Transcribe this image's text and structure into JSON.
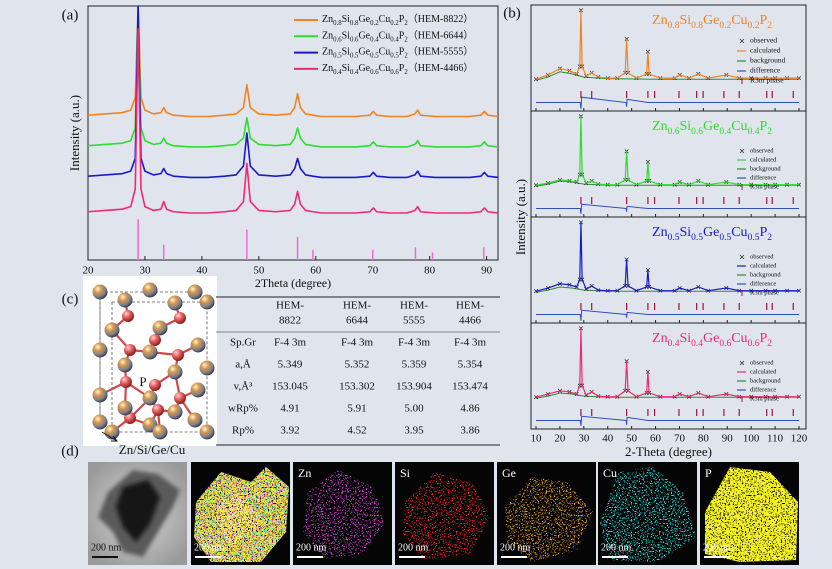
{
  "panel_labels": [
    "(a)",
    "(b)",
    "(c)",
    "(d)"
  ],
  "chart_data": [
    {
      "type": "line",
      "x_label": "2Theta (degree)",
      "y_label": "Intensity (a.u.)",
      "xlim": [
        20,
        92
      ],
      "ylim": [
        0,
        100
      ],
      "xticks": [
        20,
        30,
        40,
        50,
        60,
        70,
        80,
        90
      ],
      "x": [
        20,
        23,
        26,
        27.5,
        28.3,
        28.8,
        29.3,
        30,
        31.5,
        32.8,
        33.3,
        33.8,
        35,
        38,
        41,
        44,
        46,
        47.3,
        47.9,
        48.5,
        50,
        53,
        55.5,
        56.3,
        56.8,
        57.3,
        58.2,
        59.5,
        61,
        64,
        67,
        69.5,
        70.1,
        70.7,
        73,
        76,
        77.4,
        77.9,
        78.4,
        81,
        84,
        87,
        89,
        89.6,
        90.2,
        92
      ],
      "series": [
        {
          "name": "（HEM-8822）",
          "color": "#f5821f",
          "formula": [
            [
              "Zn",
              "0.8"
            ],
            [
              "Si",
              "0.8"
            ],
            [
              "Ge",
              "0.2"
            ],
            [
              "Cu",
              "0.2"
            ],
            [
              "P",
              "2"
            ]
          ],
          "values": [
            57,
            57.5,
            58,
            59,
            64,
            100,
            64,
            59,
            57.5,
            58,
            60,
            58,
            57,
            56.5,
            56.5,
            57,
            57.5,
            60,
            69,
            60,
            57.5,
            57,
            57.5,
            60,
            65.5,
            60,
            57.5,
            57,
            56.5,
            56.5,
            56.5,
            57,
            58.5,
            57,
            56.5,
            56.5,
            57.5,
            59,
            57,
            56.5,
            56.5,
            56.5,
            57,
            58.5,
            57,
            56.5
          ]
        },
        {
          "name": "（HEM-6644）",
          "color": "#2fdc2f",
          "formula": [
            [
              "Zn",
              "0.6"
            ],
            [
              "Si",
              "0.6"
            ],
            [
              "Ge",
              "0.4"
            ],
            [
              "Cu",
              "0.4"
            ],
            [
              "P",
              "2"
            ]
          ],
          "values": [
            45,
            45.5,
            46,
            47,
            52,
            100,
            52,
            47,
            45.5,
            46,
            48,
            46,
            45,
            44.5,
            44.5,
            45,
            45.5,
            48,
            56,
            48,
            45.5,
            45,
            45.5,
            48,
            52,
            48,
            45.5,
            45,
            44.5,
            44.5,
            44.5,
            45,
            46.5,
            45,
            44.5,
            44.5,
            45.5,
            47,
            45,
            44.5,
            44.5,
            44.5,
            45,
            46.5,
            45,
            44.5
          ]
        },
        {
          "name": "（HEM-5555）",
          "color": "#1a1ac8",
          "formula": [
            [
              "Zn",
              "0.5"
            ],
            [
              "Si",
              "0.5"
            ],
            [
              "Ge",
              "0.5"
            ],
            [
              "Cu",
              "0.5"
            ],
            [
              "P",
              "2"
            ]
          ],
          "values": [
            33,
            33.5,
            34,
            35,
            40,
            100,
            40,
            35,
            33.5,
            34,
            36,
            34,
            33,
            32.5,
            32.5,
            33,
            33.5,
            37,
            50,
            37,
            33.5,
            33,
            33.5,
            36,
            40,
            36,
            33.5,
            33,
            32.5,
            32.5,
            32.5,
            33,
            34.5,
            33,
            32.5,
            32.5,
            33.5,
            35,
            33,
            32.5,
            32.5,
            32.5,
            33,
            34.5,
            33,
            32.5
          ]
        },
        {
          "name": "（HEM-4466）",
          "color": "#f0287a",
          "formula": [
            [
              "Zn",
              "0.4"
            ],
            [
              "Si",
              "0.4"
            ],
            [
              "Ge",
              "0.6"
            ],
            [
              "Cu",
              "0.6"
            ],
            [
              "P",
              "2"
            ]
          ],
          "values": [
            19,
            19.5,
            20,
            21,
            28,
            91,
            28,
            21,
            19.5,
            20,
            23,
            20,
            19,
            18.5,
            18.5,
            19,
            19.5,
            23,
            38,
            23,
            19.5,
            19,
            19.5,
            22,
            27,
            22,
            19.5,
            19,
            18.5,
            18.5,
            18.5,
            19,
            20.5,
            19,
            18.5,
            18.5,
            19.5,
            21,
            19,
            18.5,
            18.5,
            18.5,
            19,
            20.5,
            19,
            18.5
          ]
        }
      ],
      "reference": {
        "color": "#f06ad8",
        "x": [
          28.8,
          33.3,
          47.9,
          56.8,
          59.5,
          70,
          77.5,
          80.5,
          89.5
        ],
        "values": [
          16,
          6,
          12,
          9,
          4,
          4,
          5,
          3,
          5
        ]
      }
    },
    {
      "type": "rietveld",
      "x_label": "2-Theta (degree)",
      "y_label": "Intensity (a.u.)",
      "xlim": [
        10,
        120
      ],
      "ylim": [
        0,
        100
      ],
      "xticks": [
        10,
        20,
        30,
        40,
        50,
        60,
        70,
        80,
        90,
        100,
        110,
        120
      ],
      "legend": [
        "observed",
        "calculated",
        "background",
        "difference",
        "R3m phase"
      ],
      "background_color": "#2e8b2e",
      "difference_color": "#3050c0",
      "phase_color": "#a01040",
      "phase_ticks": [
        28.8,
        33.3,
        47.9,
        56.8,
        59.6,
        69.8,
        77.2,
        79.9,
        88.6,
        95,
        106.5,
        108.8,
        117.6
      ],
      "panels": [
        {
          "x": [
            10,
            15,
            20,
            24,
            27,
            28.3,
            28.8,
            29.3,
            31,
            33.3,
            36,
            40,
            44,
            47.3,
            47.9,
            48.5,
            52,
            56.3,
            56.8,
            57.3,
            62,
            68,
            70.1,
            74,
            77.9,
            82,
            89.6,
            95,
            100,
            106,
            110,
            115,
            120
          ],
          "values": [
            30,
            34,
            40,
            38,
            35,
            42,
            95,
            42,
            33,
            36,
            32,
            31,
            31,
            36,
            68,
            36,
            31,
            35,
            56,
            35,
            31,
            31,
            34,
            31,
            35,
            31,
            34,
            31,
            31,
            31,
            31,
            31,
            31
          ],
          "background": {
            "x": [
              10,
              15,
              20,
              25,
              30,
              40,
              60,
              90,
              120
            ],
            "values": [
              29,
              32,
              37,
              35,
              32,
              30.5,
              30,
              30,
              30
            ]
          },
          "difference": {
            "x": [
              10,
              28.5,
              28.8,
              29.1,
              47.7,
              47.9,
              48.1,
              56.8,
              120
            ],
            "values": [
              8,
              8,
              2,
              13,
              8,
              4,
              11,
              8,
              8
            ]
          }
        },
        {
          "x": [
            10,
            15,
            20,
            24,
            27,
            28.3,
            28.8,
            29.3,
            31,
            33.3,
            36,
            40,
            44,
            47.3,
            47.9,
            48.5,
            52,
            56.3,
            56.8,
            57.3,
            62,
            68,
            70.1,
            74,
            77.9,
            82,
            89.6,
            95,
            100,
            106,
            110,
            115,
            120
          ],
          "values": [
            30,
            32,
            35,
            34,
            33,
            40,
            95,
            40,
            32,
            34,
            31,
            30.5,
            30.5,
            35,
            62,
            35,
            30.5,
            34,
            52,
            34,
            30.5,
            30.5,
            33,
            30.5,
            34,
            30.5,
            33,
            30.5,
            30.5,
            30.5,
            30.5,
            30.5,
            30.5
          ],
          "background": {
            "x": [
              10,
              15,
              20,
              25,
              30,
              40,
              60,
              90,
              120
            ],
            "values": [
              29,
              31,
              34,
              33,
              31,
              30,
              30,
              30,
              30
            ]
          },
          "difference": {
            "x": [
              10,
              28.5,
              28.8,
              29.1,
              47.7,
              47.9,
              48.1,
              56.8,
              120
            ],
            "values": [
              8,
              8,
              3,
              12,
              8,
              5,
              10,
              8,
              8
            ]
          }
        },
        {
          "x": [
            10,
            15,
            20,
            24,
            27,
            28.3,
            28.8,
            29.3,
            31,
            33.3,
            36,
            40,
            44,
            47.3,
            47.9,
            48.5,
            52,
            56.3,
            56.8,
            57.3,
            62,
            68,
            70.1,
            74,
            77.9,
            82,
            89.6,
            95,
            100,
            106,
            110,
            115,
            120
          ],
          "values": [
            30,
            33,
            37,
            36,
            34,
            41,
            95,
            41,
            32,
            35,
            31,
            30.5,
            30.5,
            35,
            60,
            35,
            30.5,
            34,
            50,
            34,
            30.5,
            30.5,
            33,
            30.5,
            34,
            30.5,
            33,
            30.5,
            30.5,
            30.5,
            30.5,
            30.5,
            30.5
          ],
          "background": {
            "x": [
              10,
              15,
              20,
              25,
              30,
              40,
              60,
              90,
              120
            ],
            "values": [
              29,
              31,
              34,
              33,
              31,
              30,
              30,
              30,
              30
            ]
          },
          "difference": {
            "x": [
              10,
              28.5,
              28.8,
              29.1,
              47.7,
              47.9,
              48.1,
              56.8,
              120
            ],
            "values": [
              8,
              8,
              2,
              12,
              8,
              5,
              10,
              8,
              8
            ]
          }
        },
        {
          "x": [
            10,
            15,
            20,
            24,
            27,
            28.3,
            28.8,
            29.3,
            31,
            33.3,
            36,
            40,
            44,
            47.3,
            47.9,
            48.5,
            52,
            56.3,
            56.8,
            57.3,
            62,
            68,
            70.1,
            74,
            77.9,
            82,
            89.6,
            95,
            100,
            106,
            110,
            115,
            120
          ],
          "values": [
            30,
            33,
            36,
            35,
            33,
            41,
            95,
            41,
            32,
            35,
            31,
            30.5,
            30.5,
            36,
            64,
            36,
            30.5,
            34,
            54,
            34,
            30.5,
            30.5,
            33,
            30.5,
            34,
            30.5,
            33,
            30.5,
            30.5,
            30.5,
            30.5,
            30.5,
            30.5
          ],
          "background": {
            "x": [
              10,
              15,
              20,
              25,
              30,
              40,
              60,
              90,
              120
            ],
            "values": [
              29,
              31,
              34,
              33,
              31,
              30,
              30,
              30,
              30
            ]
          },
          "difference": {
            "x": [
              10,
              28.5,
              28.8,
              29.1,
              47.7,
              47.9,
              48.1,
              56.8,
              120
            ],
            "values": [
              8,
              8,
              3,
              12,
              8,
              4,
              11,
              8,
              8
            ]
          }
        }
      ]
    }
  ],
  "structure": {
    "labels": [
      "P",
      "Zn/Si/Ge/Cu"
    ]
  },
  "table": {
    "header": [
      [
        "HEM-",
        "8822"
      ],
      [
        "HEM-",
        "6644"
      ],
      [
        "HEM-",
        "5555"
      ],
      [
        "HEM-",
        "4466"
      ]
    ],
    "rows": [
      [
        "Sp.Gr",
        "F-4 3m",
        "F-4 3m",
        "F-4 3m",
        "F-4 3m"
      ],
      [
        "a,Å",
        "5.349",
        "5.352",
        "5.359",
        "5.354"
      ],
      [
        "v,Å³",
        "153.045",
        "153.302",
        "153.904",
        "153.474"
      ],
      [
        "wRp%",
        "4.91",
        "5.91",
        "5.00",
        "4.86"
      ],
      [
        "Rp%",
        "3.92",
        "4.52",
        "3.95",
        "3.86"
      ]
    ]
  },
  "mapping": {
    "labels": [
      "Zn",
      "Si",
      "Ge",
      "Cu",
      "P"
    ],
    "scale_bar": "200 nm"
  }
}
